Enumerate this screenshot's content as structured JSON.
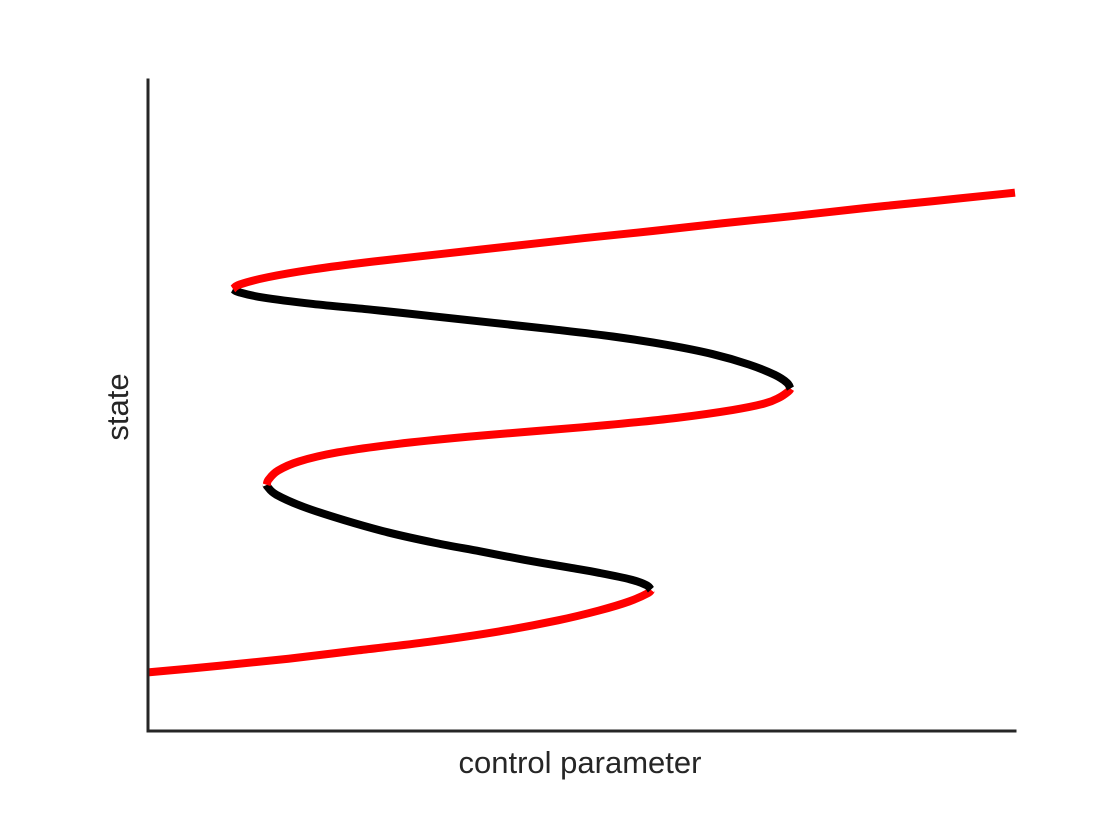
{
  "chart_data": {
    "type": "line",
    "title": "",
    "xlabel": "control parameter",
    "ylabel": "state",
    "xlim": [
      0,
      1
    ],
    "ylim": [
      0,
      1
    ],
    "grid": false,
    "legend": "none",
    "colors": {
      "stable": "#ff0000",
      "unstable": "#000000",
      "axis": "#262626"
    },
    "series": [
      {
        "stability": "stable",
        "color": "#ff0000",
        "points": [
          [
            0.0,
            0.09
          ],
          [
            0.081,
            0.1
          ],
          [
            0.162,
            0.111
          ],
          [
            0.243,
            0.124
          ],
          [
            0.324,
            0.137
          ],
          [
            0.405,
            0.153
          ],
          [
            0.473,
            0.17
          ],
          [
            0.52,
            0.185
          ],
          [
            0.555,
            0.199
          ],
          [
            0.577,
            0.212
          ],
          [
            0.58,
            0.217
          ]
        ]
      },
      {
        "stability": "unstable",
        "color": "#000000",
        "points": [
          [
            0.58,
            0.217
          ],
          [
            0.575,
            0.224
          ],
          [
            0.556,
            0.233
          ],
          [
            0.52,
            0.243
          ],
          [
            0.486,
            0.251
          ],
          [
            0.434,
            0.263
          ],
          [
            0.383,
            0.276
          ],
          [
            0.331,
            0.289
          ],
          [
            0.277,
            0.305
          ],
          [
            0.226,
            0.324
          ],
          [
            0.18,
            0.344
          ],
          [
            0.148,
            0.363
          ],
          [
            0.138,
            0.375
          ],
          [
            0.137,
            0.378
          ]
        ]
      },
      {
        "stability": "stable",
        "color": "#ff0000",
        "points": [
          [
            0.137,
            0.378
          ],
          [
            0.139,
            0.386
          ],
          [
            0.15,
            0.4
          ],
          [
            0.174,
            0.414
          ],
          [
            0.219,
            0.428
          ],
          [
            0.288,
            0.441
          ],
          [
            0.369,
            0.452
          ],
          [
            0.45,
            0.461
          ],
          [
            0.53,
            0.47
          ],
          [
            0.61,
            0.481
          ],
          [
            0.674,
            0.493
          ],
          [
            0.711,
            0.503
          ],
          [
            0.728,
            0.512
          ],
          [
            0.739,
            0.522
          ],
          [
            0.741,
            0.526
          ]
        ]
      },
      {
        "stability": "unstable",
        "color": "#000000",
        "points": [
          [
            0.741,
            0.526
          ],
          [
            0.737,
            0.535
          ],
          [
            0.723,
            0.547
          ],
          [
            0.693,
            0.563
          ],
          [
            0.651,
            0.579
          ],
          [
            0.599,
            0.593
          ],
          [
            0.536,
            0.606
          ],
          [
            0.467,
            0.617
          ],
          [
            0.398,
            0.627
          ],
          [
            0.329,
            0.637
          ],
          [
            0.259,
            0.647
          ],
          [
            0.19,
            0.656
          ],
          [
            0.132,
            0.666
          ],
          [
            0.105,
            0.674
          ],
          [
            0.098,
            0.679
          ]
        ]
      },
      {
        "stability": "stable",
        "color": "#ff0000",
        "points": [
          [
            0.098,
            0.679
          ],
          [
            0.106,
            0.686
          ],
          [
            0.138,
            0.697
          ],
          [
            0.19,
            0.709
          ],
          [
            0.259,
            0.721
          ],
          [
            0.34,
            0.733
          ],
          [
            0.421,
            0.745
          ],
          [
            0.502,
            0.757
          ],
          [
            0.582,
            0.768
          ],
          [
            0.663,
            0.78
          ],
          [
            0.744,
            0.791
          ],
          [
            0.825,
            0.803
          ],
          [
            0.906,
            0.814
          ],
          [
            0.986,
            0.825
          ],
          [
            1.0,
            0.827
          ]
        ]
      }
    ]
  }
}
